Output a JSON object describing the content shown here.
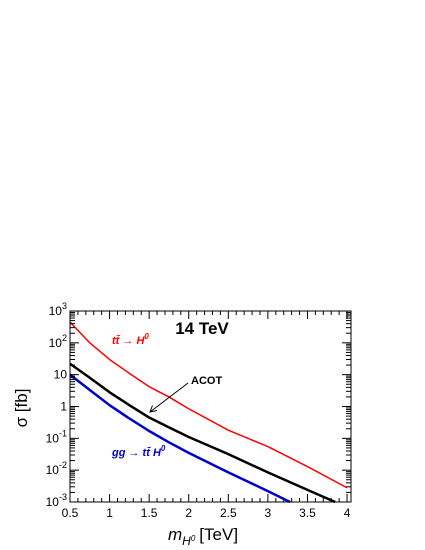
{
  "chart_data": {
    "type": "line",
    "title": "14 TeV",
    "xlabel_main": "m",
    "xlabel_sub": "H",
    "xlabel_sup": "0",
    "xlabel_unit": "[TeV]",
    "ylabel": "σ [fb]",
    "xlim": [
      0.5,
      4.05
    ],
    "ylim": [
      0.001,
      1000
    ],
    "yscale": "log",
    "grid": false,
    "xticks": [
      {
        "v": 0.5,
        "label": "0.5"
      },
      {
        "v": 1,
        "label": "1"
      },
      {
        "v": 1.5,
        "label": "1.5"
      },
      {
        "v": 2,
        "label": "2"
      },
      {
        "v": 2.5,
        "label": "2.5"
      },
      {
        "v": 3,
        "label": "3"
      },
      {
        "v": 3.5,
        "label": "3.5"
      },
      {
        "v": 4,
        "label": "4"
      }
    ],
    "yticks": [
      {
        "v": 0.001,
        "base": "10",
        "exp": "-3"
      },
      {
        "v": 0.01,
        "base": "10",
        "exp": "-2"
      },
      {
        "v": 0.1,
        "base": "10",
        "exp": "-1"
      },
      {
        "v": 1,
        "base": "1",
        "exp": ""
      },
      {
        "v": 10,
        "base": "10",
        "exp": ""
      },
      {
        "v": 100,
        "base": "10",
        "exp": "2"
      },
      {
        "v": 1000,
        "base": "10",
        "exp": "3"
      }
    ],
    "series": [
      {
        "color": "#ff0000",
        "width": 1.5,
        "x": [
          0.5,
          0.75,
          1.0,
          1.25,
          1.5,
          1.75,
          2.0,
          2.5,
          3.0,
          3.5,
          4.0
        ],
        "y": [
          450,
          100,
          30,
          11,
          4.2,
          2.0,
          0.85,
          0.18,
          0.055,
          0.013,
          0.0028
        ]
      },
      {
        "color": "#000000",
        "width": 2.5,
        "x": [
          0.5,
          0.75,
          1.0,
          1.25,
          1.5,
          1.75,
          2.0,
          2.5,
          3.0,
          3.5,
          3.85
        ],
        "y": [
          22,
          8.0,
          2.8,
          1.1,
          0.45,
          0.22,
          0.11,
          0.032,
          0.0085,
          0.0024,
          0.001
        ]
      },
      {
        "color": "#0000cc",
        "width": 2.5,
        "x": [
          0.5,
          0.75,
          1.0,
          1.25,
          1.5,
          1.75,
          2.0,
          2.5,
          3.0,
          3.28
        ],
        "y": [
          10,
          3.3,
          1.1,
          0.42,
          0.17,
          0.075,
          0.035,
          0.0085,
          0.0022,
          0.001
        ]
      }
    ],
    "annotations": [
      {
        "id": "tt-label",
        "parts": [
          "t",
          "t̄",
          " → H",
          "0"
        ],
        "color": "#ff0000"
      },
      {
        "id": "acot-label",
        "text": "ACOT",
        "color": "#000000"
      },
      {
        "id": "gg-label",
        "parts": [
          "gg → t",
          "t̄",
          " H",
          "0"
        ],
        "color": "#0000cc"
      }
    ]
  }
}
